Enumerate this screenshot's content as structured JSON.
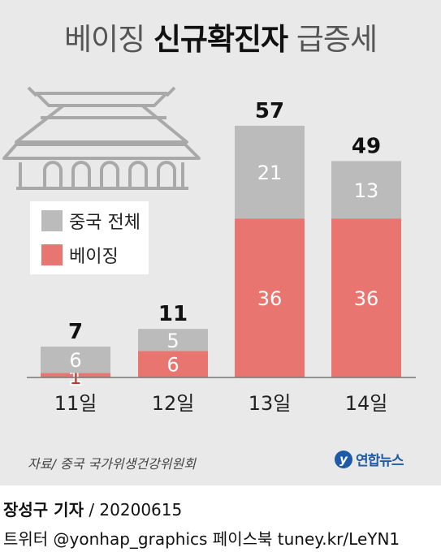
{
  "title": {
    "prefix": "베이징",
    "highlight": "신규확진자",
    "suffix": "급증세"
  },
  "colors": {
    "china_total": "#bbbbbb",
    "beijing": "#e8756f",
    "background": "#e9e9e9"
  },
  "chart_data": {
    "type": "bar",
    "stacked": true,
    "categories": [
      "11일",
      "12일",
      "13일",
      "14일"
    ],
    "series": [
      {
        "name": "베이징",
        "values": [
          1,
          6,
          36,
          36
        ],
        "color": "#e8756f"
      },
      {
        "name": "중국 전체",
        "values": [
          6,
          5,
          21,
          13
        ],
        "color": "#bbbbbb"
      }
    ],
    "totals": [
      7,
      11,
      57,
      49
    ],
    "legend": [
      "중국 전체",
      "베이징"
    ],
    "legend_position": "left"
  },
  "source": "자료/ 중국 국가위생건강위원회",
  "logo": {
    "text": "연합뉴스",
    "icon": "yonhap-logo-icon"
  },
  "credits": {
    "reporter": "장성구 기자",
    "date": "/ 20200615",
    "line2": "트위터 @yonhap_graphics  페이스북 tuney.kr/LeYN1"
  }
}
